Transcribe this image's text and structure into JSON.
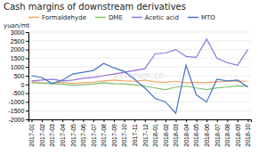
{
  "chart_data": {
    "type": "line",
    "title": "Cash margins of downstream derivatives",
    "y_label": "yuan/mt",
    "annotations": [
      "ccforum.cn"
    ],
    "categories": [
      "2017-01",
      "2017-02",
      "2017-03",
      "2017-04",
      "2017-05",
      "2017-06",
      "2017-07",
      "2017-08",
      "2017-09",
      "2017-10",
      "2017-11",
      "2017-12",
      "2018-01",
      "2018-02",
      "2018-03",
      "2018-04",
      "2018-05",
      "2018-06",
      "2018-07",
      "2018-08",
      "2018-09",
      "2018-10"
    ],
    "series": [
      {
        "name": "Formaldehyde",
        "color": "#f4a460",
        "values": [
          150,
          100,
          80,
          120,
          60,
          100,
          130,
          200,
          250,
          200,
          180,
          250,
          150,
          120,
          180,
          100,
          120,
          100,
          150,
          180,
          200,
          180
        ]
      },
      {
        "name": "DME",
        "color": "#7dc06e",
        "values": [
          100,
          80,
          50,
          20,
          -50,
          -20,
          30,
          100,
          50,
          30,
          -30,
          -100,
          -200,
          -300,
          -150,
          -100,
          -200,
          -300,
          -200,
          -150,
          -80,
          -100
        ]
      },
      {
        "name": "Acetic acid",
        "color": "#9370db",
        "values": [
          200,
          250,
          300,
          200,
          250,
          350,
          400,
          500,
          600,
          700,
          800,
          900,
          1750,
          1800,
          2000,
          1600,
          1550,
          2600,
          1500,
          1250,
          1100,
          2000
        ]
      },
      {
        "name": "MTO",
        "color": "#4472c4",
        "values": [
          500,
          400,
          50,
          250,
          600,
          700,
          800,
          1200,
          950,
          750,
          300,
          -200,
          -800,
          -1000,
          -1650,
          1100,
          -600,
          -1000,
          300,
          200,
          250,
          -150
        ]
      }
    ],
    "ylim": [
      -2000,
      3000
    ],
    "yticks": [
      -2000,
      -1500,
      -1000,
      -500,
      0,
      500,
      1000,
      1500,
      2000,
      2500,
      3000
    ],
    "grid": true,
    "legend": "top"
  }
}
